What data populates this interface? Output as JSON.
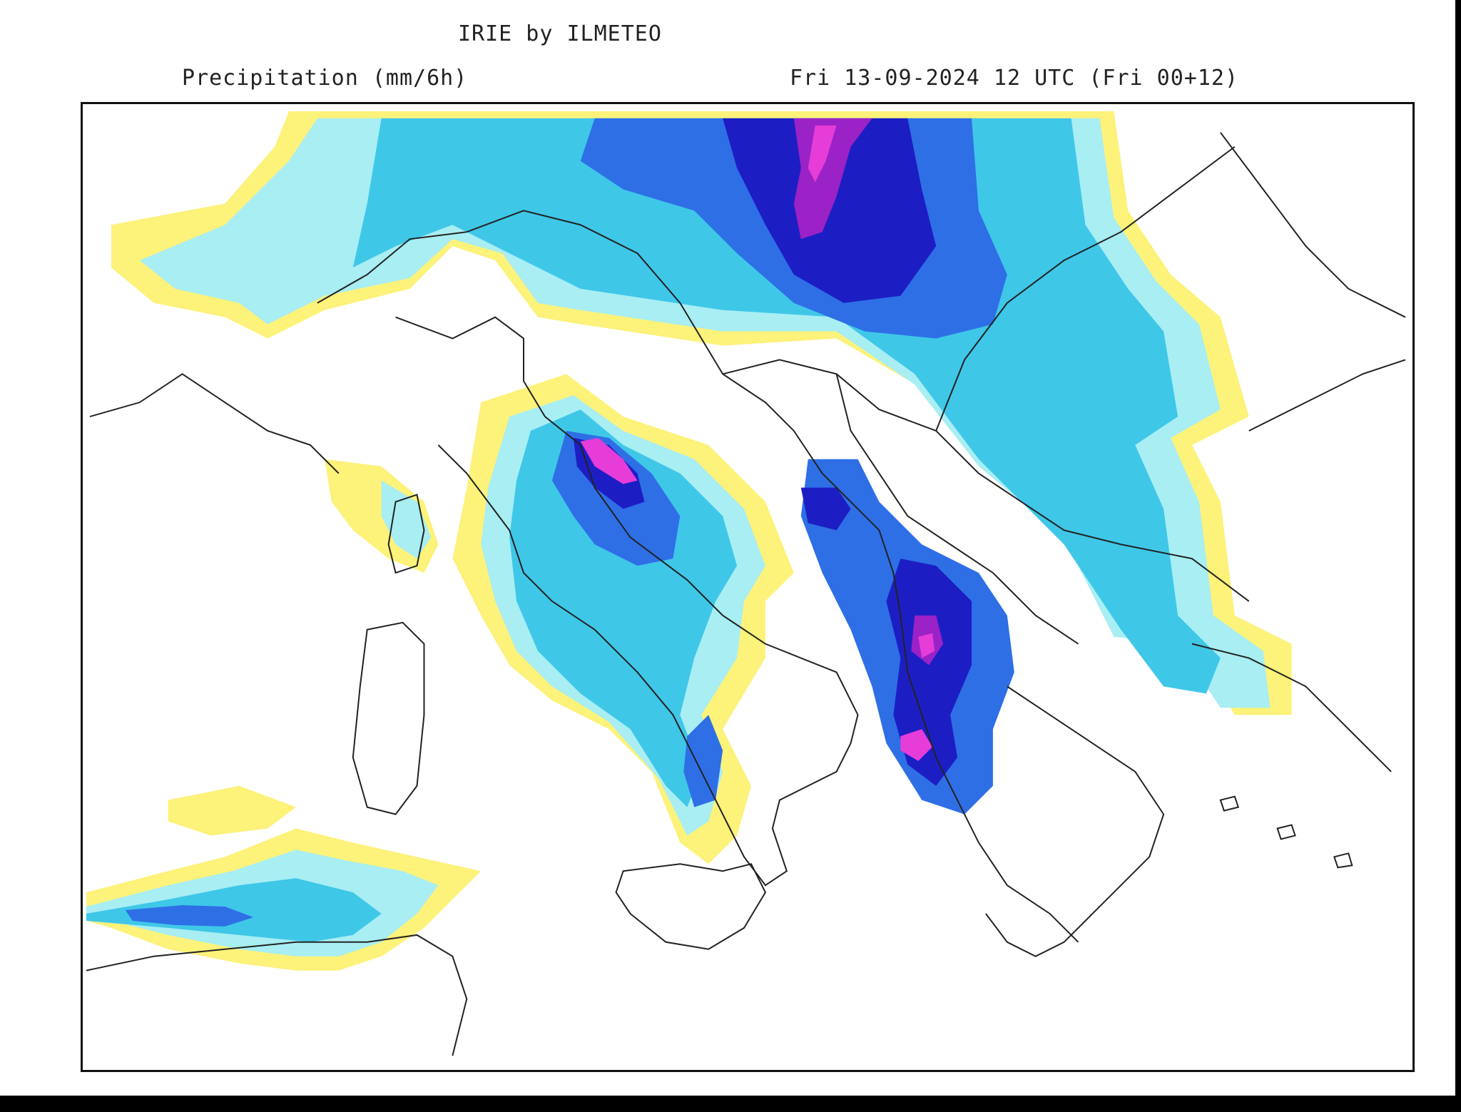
{
  "header": {
    "title": "IRIE by ILMETEO",
    "variable": "Precipitation (mm/6h)",
    "valid_time": "Fri 13-09-2024 12 UTC (Fri 00+12)"
  },
  "map": {
    "region": "Italy and the Balkans",
    "levels": [
      {
        "name": "light",
        "color": "#fdf27a"
      },
      {
        "name": "low",
        "color": "#a8eef3"
      },
      {
        "name": "moderate",
        "color": "#3fc7e8"
      },
      {
        "name": "heavy",
        "color": "#2e6fe6"
      },
      {
        "name": "very-heavy",
        "color": "#1c1ec4"
      },
      {
        "name": "intense",
        "color": "#9a22c6"
      },
      {
        "name": "extreme",
        "color": "#e63cd8"
      }
    ],
    "coastline_color": "#222222"
  }
}
